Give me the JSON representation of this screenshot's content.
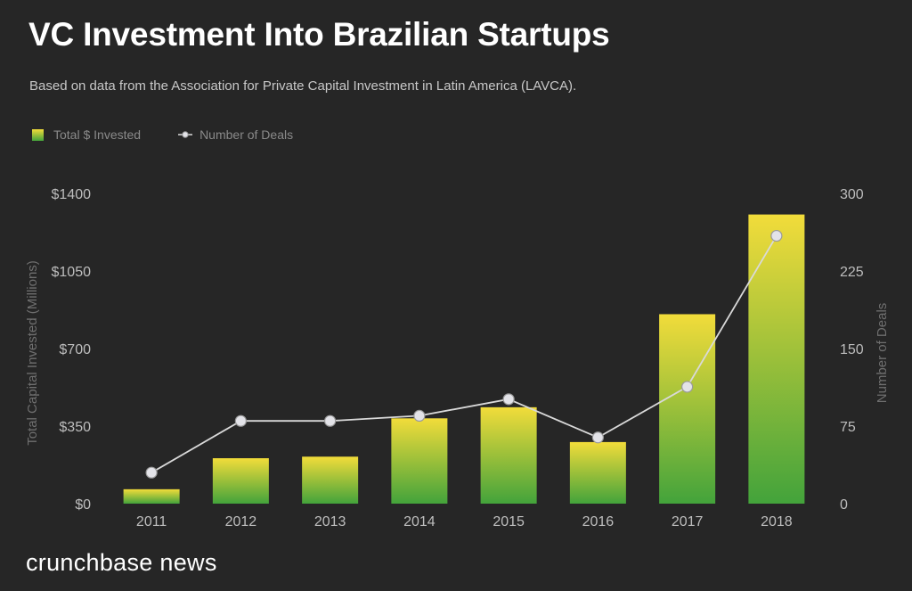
{
  "title": "VC Investment Into Brazilian Startups",
  "subtitle": "Based on data from the Association for Private Capital Investment in Latin America (LAVCA).",
  "brand": {
    "part1": "crunchbase",
    "part2": " news"
  },
  "colors": {
    "background": "#262626",
    "bar_top": "#f2dc3a",
    "bar_bottom": "#43a33b",
    "line": "#d9d9d9",
    "marker_fill": "#e3e3e8",
    "marker_stroke": "#9a9a9a",
    "axis_text": "#bdbdbd",
    "axis_title": "#6f6f6f"
  },
  "chart_data": {
    "type": "bar",
    "title": "VC Investment Into Brazilian Startups",
    "categories": [
      "2011",
      "2012",
      "2013",
      "2014",
      "2015",
      "2016",
      "2017",
      "2018"
    ],
    "series": [
      {
        "name": "Total $ Invested",
        "type": "bar",
        "axis": "left",
        "values": [
          65,
          205,
          212,
          385,
          435,
          278,
          855,
          1305
        ]
      },
      {
        "name": "Number of Deals",
        "type": "line",
        "axis": "right",
        "values": [
          30,
          80,
          80,
          85,
          101,
          64,
          113,
          259
        ]
      }
    ],
    "ylabel": "Total Capital Invested (Millions)",
    "y2label": "Number of Deals",
    "ylim": [
      0,
      1400
    ],
    "y2lim": [
      0,
      300
    ],
    "y_ticks": [
      "$0",
      "$350",
      "$700",
      "$1050",
      "$1400"
    ],
    "y2_ticks": [
      "0",
      "75",
      "150",
      "225",
      "300"
    ],
    "grid": false,
    "legend_position": "top-left"
  }
}
